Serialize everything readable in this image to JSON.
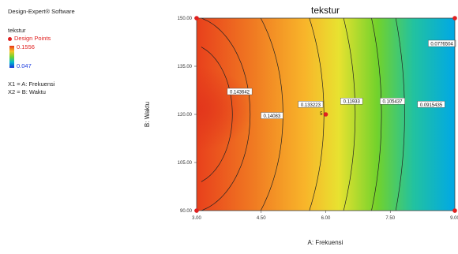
{
  "software": "Design-Expert® Software",
  "legend": {
    "response": "tekstur",
    "design_points_label": "Design Points",
    "max": "0.1556",
    "min": "0.047",
    "x1": "X1 = A: Frekuensi",
    "x2": "X2 = B: Waktu"
  },
  "colors": {
    "design_point": "#e02020",
    "high": "#e8301a",
    "low": "#1832d8"
  },
  "chart_data": {
    "type": "contour",
    "title": "tekstur",
    "xlabel": "A: Frekuensi",
    "ylabel": "B: Waktu",
    "xlim": [
      3.0,
      9.0
    ],
    "ylim": [
      90.0,
      150.0
    ],
    "xticks": [
      "3.00",
      "4.50",
      "6.00",
      "7.50",
      "9.00"
    ],
    "yticks": [
      "90.00",
      "105.00",
      "120.00",
      "135.00",
      "150.00"
    ],
    "contours": [
      {
        "label": "0.143642",
        "level": 0.143642,
        "label_at": [
          4.0,
          127.0
        ]
      },
      {
        "label": "0.14083",
        "level": 0.14083,
        "label_at": [
          4.75,
          119.5
        ]
      },
      {
        "label": "0.133223",
        "level": 0.133223,
        "label_at": [
          5.65,
          123.0
        ]
      },
      {
        "label": "0.11933",
        "level": 0.11933,
        "label_at": [
          6.6,
          124.0
        ]
      },
      {
        "label": "0.105437",
        "level": 0.105437,
        "label_at": [
          7.55,
          124.0
        ]
      },
      {
        "label": "0.0915435",
        "level": 0.0915435,
        "label_at": [
          8.45,
          123.0
        ]
      },
      {
        "label": "0.0776504",
        "level": 0.0776504,
        "label_at": [
          8.7,
          142.0
        ]
      }
    ],
    "design_points": [
      {
        "x": 3.0,
        "y": 90.0
      },
      {
        "x": 3.0,
        "y": 150.0
      },
      {
        "x": 9.0,
        "y": 90.0
      },
      {
        "x": 9.0,
        "y": 150.0
      },
      {
        "x": 6.0,
        "y": 120.0,
        "count_label": "5"
      }
    ]
  }
}
